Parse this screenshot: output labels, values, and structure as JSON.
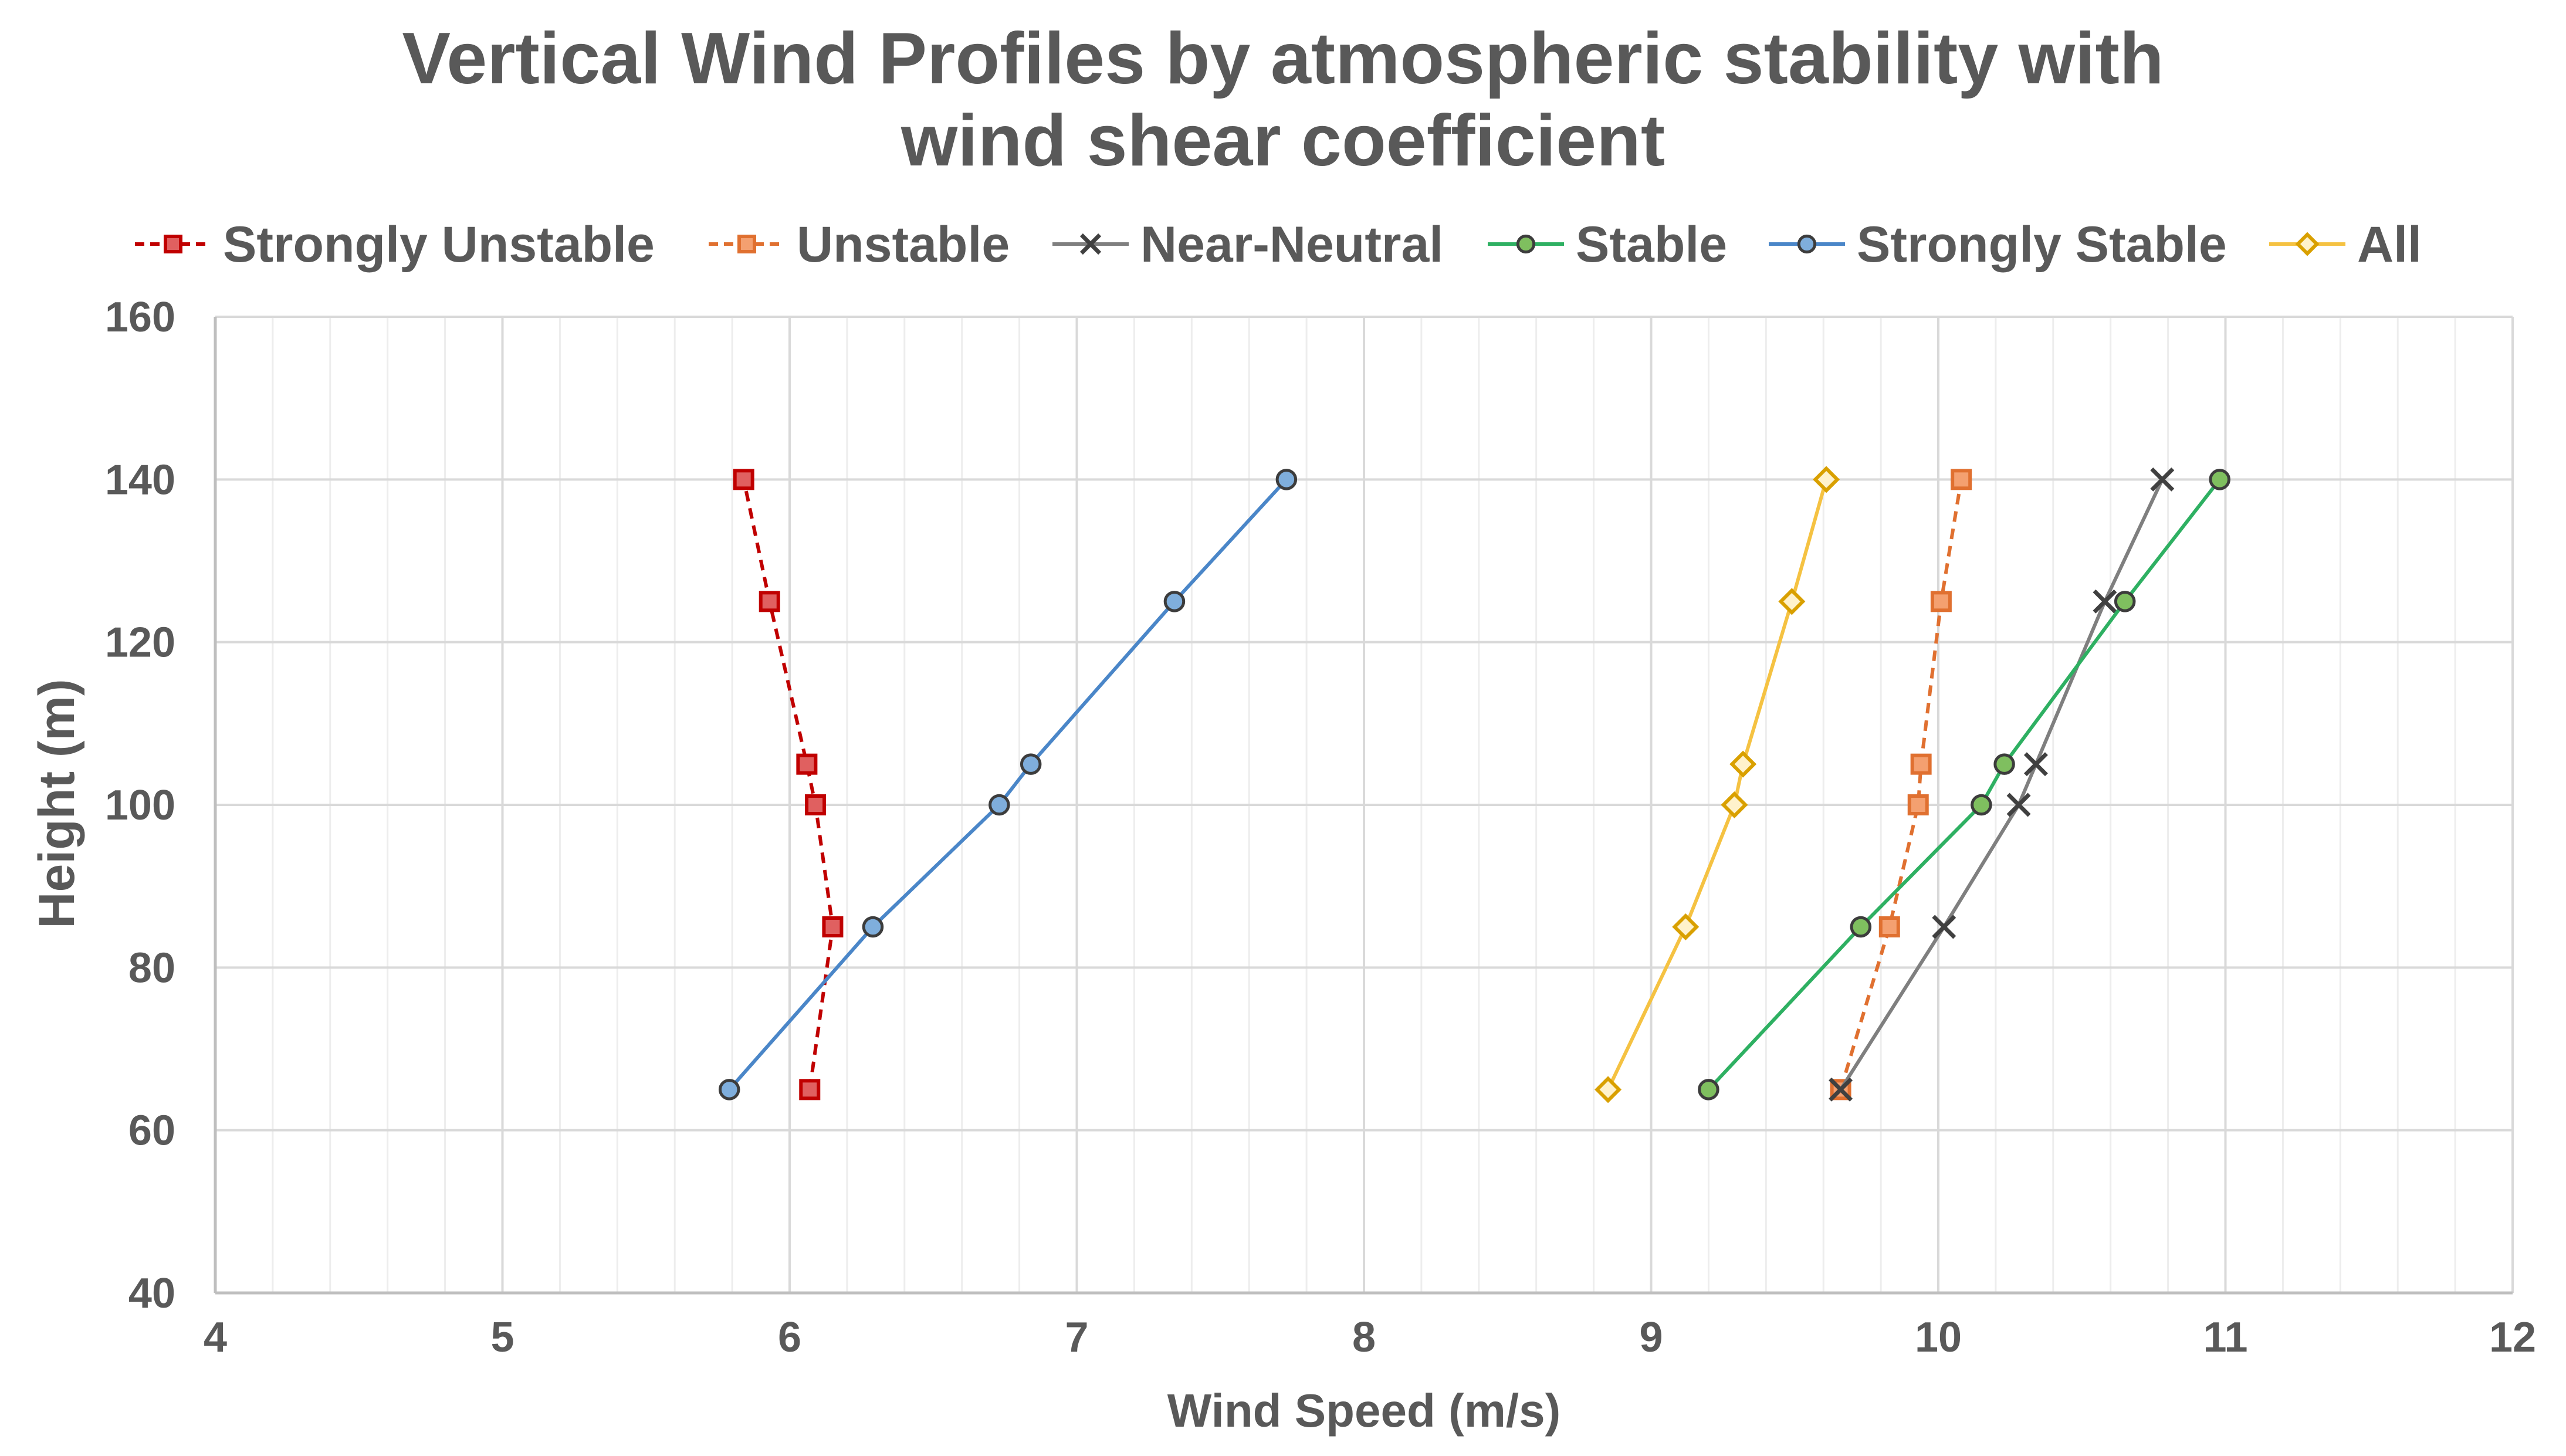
{
  "chart_data": {
    "type": "line",
    "title_lines": [
      "Vertical Wind Profiles by atmospheric stability with",
      "wind shear coefficient"
    ],
    "xlabel": "Wind Speed (m/s)",
    "ylabel": "Height (m)",
    "xlim": [
      4,
      12
    ],
    "ylim": [
      40,
      160
    ],
    "x_ticks": [
      "4",
      "5",
      "6",
      "7",
      "8",
      "9",
      "10",
      "11",
      "12"
    ],
    "y_ticks": [
      "40",
      "60",
      "80",
      "100",
      "120",
      "140",
      "160"
    ],
    "grid": true,
    "legend_position": "top",
    "series": [
      {
        "name": "Strongly Unstable",
        "color": "#C00000",
        "fill": "#E06060",
        "marker": "square",
        "dash": "dashed",
        "points": [
          [
            6.07,
            65
          ],
          [
            6.15,
            85
          ],
          [
            6.09,
            100
          ],
          [
            6.06,
            105
          ],
          [
            5.93,
            125
          ],
          [
            5.84,
            140
          ]
        ]
      },
      {
        "name": "Unstable",
        "color": "#E07030",
        "fill": "#F4A070",
        "marker": "square",
        "dash": "dashed",
        "points": [
          [
            9.66,
            65
          ],
          [
            9.83,
            85
          ],
          [
            9.93,
            100
          ],
          [
            9.94,
            105
          ],
          [
            10.01,
            125
          ],
          [
            10.08,
            140
          ]
        ]
      },
      {
        "name": "Near-Neutral",
        "color": "#7F7F7F",
        "fill": "none",
        "marker": "x",
        "dash": "solid",
        "points": [
          [
            9.66,
            65
          ],
          [
            10.02,
            85
          ],
          [
            10.28,
            100
          ],
          [
            10.34,
            105
          ],
          [
            10.58,
            125
          ],
          [
            10.78,
            140
          ]
        ]
      },
      {
        "name": "Stable",
        "color": "#2EB062",
        "fill": "#7FBF5F",
        "marker": "circle",
        "dash": "solid",
        "points": [
          [
            9.2,
            65
          ],
          [
            9.73,
            85
          ],
          [
            10.15,
            100
          ],
          [
            10.23,
            105
          ],
          [
            10.65,
            125
          ],
          [
            10.98,
            140
          ]
        ]
      },
      {
        "name": "Strongly Stable",
        "color": "#4A86C8",
        "fill": "#7FAEDC",
        "marker": "circle",
        "dash": "solid",
        "points": [
          [
            5.79,
            65
          ],
          [
            6.29,
            85
          ],
          [
            6.73,
            100
          ],
          [
            6.84,
            105
          ],
          [
            7.34,
            125
          ],
          [
            7.73,
            140
          ]
        ]
      },
      {
        "name": "All",
        "color": "#F5C242",
        "fill": "#FFC000",
        "marker": "diamond",
        "dash": "solid",
        "points": [
          [
            8.85,
            65
          ],
          [
            9.12,
            85
          ],
          [
            9.29,
            100
          ],
          [
            9.32,
            105
          ],
          [
            9.49,
            125
          ],
          [
            9.61,
            140
          ]
        ]
      }
    ]
  }
}
